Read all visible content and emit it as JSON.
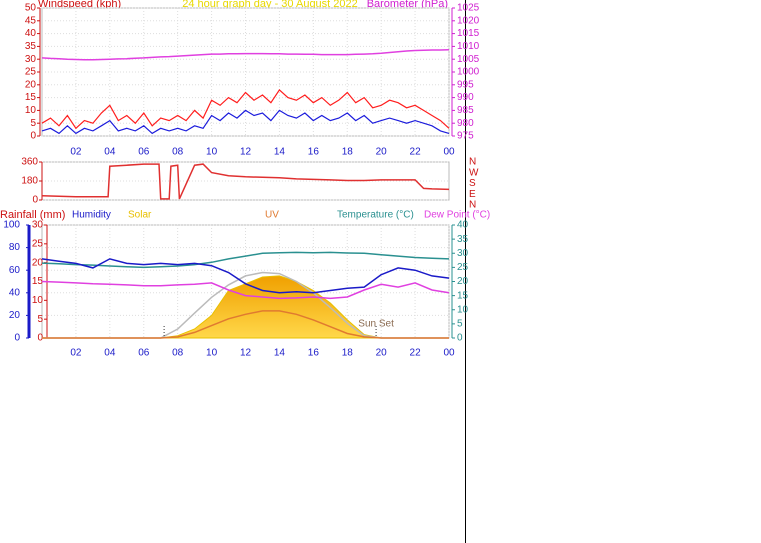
{
  "chart_data": [
    {
      "type": "line",
      "title": "24 hour graph day - 30 August 2022",
      "ylabel": "Windspeed (kph)",
      "y2label": "Barometer (hPa)",
      "x": [
        0,
        0.5,
        1,
        1.5,
        2,
        2.5,
        3,
        3.5,
        4,
        4.5,
        5,
        5.5,
        6,
        6.5,
        7,
        7.5,
        8,
        8.5,
        9,
        9.5,
        10,
        10.5,
        11,
        11.5,
        12,
        12.5,
        13,
        13.5,
        14,
        14.5,
        15,
        15.5,
        16,
        16.5,
        17,
        17.5,
        18,
        18.5,
        19,
        19.5,
        20,
        20.5,
        21,
        21.5,
        22,
        22.5,
        23,
        23.5,
        24
      ],
      "xlim": [
        0,
        24
      ],
      "xticks": [
        {
          "value": 2,
          "label": "02"
        },
        {
          "value": 4,
          "label": "04"
        },
        {
          "value": 6,
          "label": "06"
        },
        {
          "value": 8,
          "label": "08"
        },
        10,
        12,
        14,
        16,
        18,
        20,
        22,
        {
          "value": 24,
          "label": "00"
        }
      ],
      "ylim": [
        0,
        50
      ],
      "yticks": [
        0,
        5,
        10,
        15,
        20,
        25,
        30,
        35,
        40,
        45,
        50
      ],
      "y2lim": [
        975,
        1025
      ],
      "y2ticks": [
        975,
        980,
        985,
        990,
        995,
        1000,
        1005,
        1010,
        1015,
        1020,
        1025
      ],
      "grid": true,
      "series": [
        {
          "color": "#ff1e1e",
          "values": [
            5,
            7,
            4,
            8,
            3,
            6,
            5,
            9,
            12,
            6,
            8,
            5,
            9,
            4,
            7,
            6,
            8,
            6,
            10,
            7,
            14,
            12,
            15,
            13,
            17,
            14,
            16,
            13,
            18,
            15,
            14,
            16,
            13,
            15,
            12,
            14,
            17,
            13,
            15,
            11,
            12,
            14,
            13,
            11,
            12,
            10,
            8,
            6,
            3
          ]
        },
        {
          "color": "#1c1cdc",
          "values": [
            2,
            3,
            1,
            4,
            1,
            3,
            2,
            4,
            6,
            2,
            3,
            2,
            4,
            1,
            3,
            2,
            3,
            2,
            4,
            3,
            8,
            6,
            9,
            7,
            10,
            8,
            9,
            6,
            10,
            8,
            7,
            9,
            6,
            8,
            6,
            7,
            9,
            6,
            8,
            5,
            6,
            7,
            6,
            5,
            6,
            5,
            4,
            2,
            1
          ]
        },
        {
          "color": "#e040e0",
          "axis": "y2",
          "values": [
            1005.5,
            1005.3,
            1005.2,
            1005,
            1004.9,
            1004.8,
            1004.8,
            1004.9,
            1005,
            1005.1,
            1005.2,
            1005.4,
            1005.5,
            1005.7,
            1005.9,
            1006,
            1006.2,
            1006.4,
            1006.6,
            1006.8,
            1007,
            1007,
            1007.1,
            1007.1,
            1007.2,
            1007.2,
            1007.2,
            1007.1,
            1007.1,
            1007,
            1007,
            1006.9,
            1006.9,
            1006.8,
            1006.8,
            1006.8,
            1006.8,
            1006.9,
            1007,
            1007.1,
            1007.3,
            1007.6,
            1007.9,
            1008.2,
            1008.4,
            1008.5,
            1008.6,
            1008.6,
            1008.7
          ]
        }
      ]
    },
    {
      "type": "line",
      "x": [
        0,
        1,
        2,
        3,
        3.9,
        4,
        5,
        6,
        6.9,
        7,
        7.1,
        7.5,
        7.6,
        8,
        8.1,
        9,
        9.5,
        10,
        11,
        12,
        13,
        14,
        15,
        16,
        17,
        18,
        19,
        20,
        21,
        22,
        22.5,
        23,
        24
      ],
      "xlim": [
        0,
        24
      ],
      "ylim": [
        0,
        360
      ],
      "yticks": [
        0,
        180,
        360
      ],
      "compass": [
        "N",
        "W",
        "S",
        "E",
        "N"
      ],
      "grid": true,
      "series": [
        {
          "color": "#e03030",
          "values": [
            40,
            35,
            30,
            30,
            30,
            320,
            330,
            340,
            340,
            10,
            10,
            10,
            320,
            330,
            10,
            330,
            340,
            260,
            230,
            220,
            215,
            210,
            200,
            195,
            190,
            185,
            185,
            190,
            190,
            190,
            110,
            105,
            100
          ]
        }
      ]
    },
    {
      "type": "line",
      "x": [
        0,
        1,
        2,
        3,
        4,
        5,
        6,
        7,
        8,
        9,
        10,
        11,
        12,
        13,
        14,
        15,
        16,
        17,
        18,
        19,
        20,
        21,
        22,
        23,
        24
      ],
      "xlim": [
        0,
        24
      ],
      "xticks": [
        {
          "value": 2,
          "label": "02"
        },
        {
          "value": 4,
          "label": "04"
        },
        {
          "value": 6,
          "label": "06"
        },
        {
          "value": 8,
          "label": "08"
        },
        10,
        12,
        14,
        16,
        18,
        20,
        22,
        {
          "value": 24,
          "label": "00"
        }
      ],
      "ylim": [
        0,
        100
      ],
      "yticks": [
        0,
        20,
        40,
        60,
        80,
        100
      ],
      "y2lim": [
        0,
        40
      ],
      "y2ticks": [
        0,
        5,
        10,
        15,
        20,
        25,
        30,
        35,
        40
      ],
      "y3label": "Rainfall (mm)",
      "y3lim": [
        0,
        30
      ],
      "y3ticks": [
        0,
        5,
        10,
        15,
        20,
        25,
        30
      ],
      "grid": true,
      "annotations": [
        {
          "x": 7.2
        },
        {
          "x": 19.7,
          "label": "Sun Set"
        }
      ],
      "series": [
        {
          "name": "Humidity",
          "color": "#1a1ac8",
          "values": [
            70,
            68,
            66,
            62,
            70,
            66,
            65,
            66,
            65,
            66,
            64,
            58,
            48,
            42,
            40,
            41,
            40,
            42,
            44,
            45,
            56,
            62,
            60,
            55,
            53
          ]
        },
        {
          "name": "Solar",
          "color": "#e8c000",
          "fill": true,
          "values": [
            0,
            0,
            0,
            0,
            0,
            0,
            0,
            0,
            2,
            8,
            20,
            42,
            48,
            54,
            55,
            50,
            42,
            31,
            16,
            3,
            0,
            0,
            0,
            0,
            0
          ]
        },
        {
          "name": "UV",
          "color": "#e07a30",
          "values": [
            0,
            0,
            0,
            0,
            0,
            0,
            0,
            0,
            1,
            5,
            11,
            17,
            21,
            24,
            24,
            21,
            16,
            10,
            4,
            1,
            0,
            0,
            0,
            0,
            0
          ]
        },
        {
          "name": "Temperature (°C)",
          "color": "#2a9090",
          "axis": "y2",
          "values": [
            26.5,
            26.3,
            26,
            25.8,
            25.5,
            25.2,
            25,
            25.2,
            25.5,
            26,
            26.8,
            28,
            29,
            30,
            30.2,
            30.3,
            30.2,
            30.3,
            30.1,
            30,
            29.5,
            29,
            28.5,
            28.2,
            28
          ]
        },
        {
          "name": "Dew Point (°C)",
          "color": "#e040e0",
          "axis": "y2",
          "values": [
            20,
            19.8,
            19.5,
            19.2,
            19,
            18.8,
            18.5,
            18.5,
            18.8,
            19,
            19.5,
            17,
            15,
            14.5,
            14,
            14.2,
            14.5,
            14,
            14.5,
            17,
            19,
            18,
            19.5,
            17,
            16
          ]
        },
        {
          "color": "#bbbbbb",
          "values": [
            0,
            0,
            0,
            0,
            0,
            0,
            0,
            0,
            8,
            22,
            36,
            47,
            55,
            58,
            57,
            50,
            40,
            27,
            13,
            2,
            0,
            0,
            0,
            0,
            0
          ]
        }
      ]
    }
  ]
}
